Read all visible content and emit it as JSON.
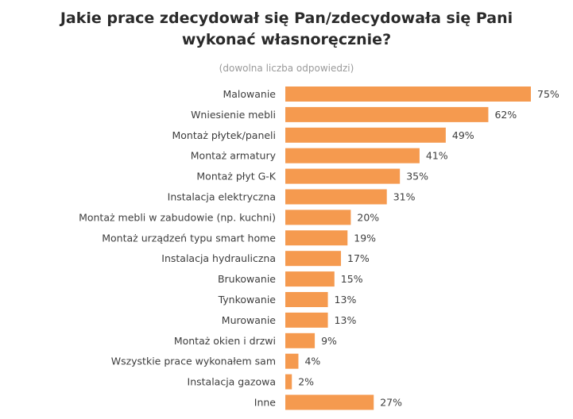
{
  "chart_data": {
    "type": "bar",
    "orientation": "horizontal",
    "title": "Jakie prace zdecydował się Pan/zdecydowała się Pani\nwykonać własnoręcznie?",
    "subtitle": "(dowolna liczba odpowiedzi)",
    "categories": [
      "Malowanie",
      "Wniesienie mebli",
      "Montaż płytek/paneli",
      "Montaż armatury",
      "Montaż płyt G-K",
      "Instalacja elektryczna",
      "Montaż mebli w zabudowie (np. kuchni)",
      "Montaż urządzeń typu smart home",
      "Instalacja hydrauliczna",
      "Brukowanie",
      "Tynkowanie",
      "Murowanie",
      "Montaż okien i drzwi",
      "Wszystkie prace wykonałem sam",
      "Instalacja gazowa",
      "Inne"
    ],
    "values": [
      75,
      62,
      49,
      41,
      35,
      31,
      20,
      19,
      17,
      15,
      13,
      13,
      9,
      4,
      2,
      27
    ],
    "value_suffix": "%",
    "xlim": [
      0,
      75
    ],
    "bar_color": "#F59A4F",
    "grid": false
  }
}
